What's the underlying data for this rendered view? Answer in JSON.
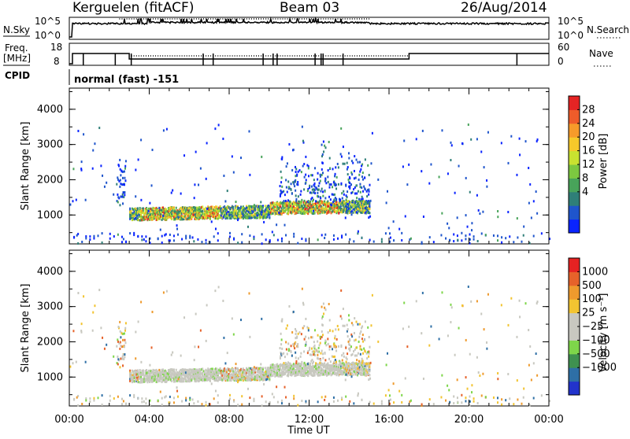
{
  "header": {
    "station": "Kerguelen (fitACF)",
    "beam": "Beam 03",
    "date": "26/Aug/2014"
  },
  "strip": {
    "nsky_label": "N.Sky",
    "nsky_ticks": [
      "10^5",
      "10^0"
    ],
    "nsearch_label": "N.Search",
    "nsearch_ticks": [
      "10^5",
      "10^0"
    ],
    "freq_label_1": "Freq.",
    "freq_label_2": "[MHz]",
    "freq_ticks": [
      "18",
      "8"
    ],
    "nave_label": "Nave",
    "nave_ticks": [
      "60",
      "0"
    ],
    "cpid_label": "CPID",
    "cpid_value": "normal (fast) -151"
  },
  "chart_data": [
    {
      "type": "heatmap",
      "name": "power",
      "ylabel": "Slant Range [km]",
      "yticks": [
        "4000",
        "3000",
        "2000",
        "1000"
      ],
      "ylim": [
        180,
        4600
      ],
      "xlim": [
        0,
        24
      ],
      "colorbar_label": "Power [dB]",
      "colorbar_ticks": [
        "28",
        "24",
        "20",
        "16",
        "12",
        "8",
        "4"
      ],
      "colors": [
        "#0a24ff",
        "#1f55cc",
        "#2f7f78",
        "#48a35a",
        "#7cc840",
        "#c9e230",
        "#f6c92a",
        "#f79b2a",
        "#ee5c2a",
        "#e52424"
      ]
    },
    {
      "type": "heatmap",
      "name": "velocity",
      "ylabel": "Slant Range [km]",
      "yticks": [
        "4000",
        "3000",
        "2000",
        "1000"
      ],
      "ylim": [
        180,
        4600
      ],
      "xlim": [
        0,
        24
      ],
      "xlabel": "Time UT",
      "xticks": [
        "00:00",
        "04:00",
        "08:00",
        "12:00",
        "16:00",
        "20:00",
        "00:00"
      ],
      "colorbar_label": "Velocity [m s⁻¹]",
      "colorbar_ticks": [
        "1000",
        "500",
        "100",
        "25",
        "−25",
        "−100",
        "−500",
        "−1000"
      ],
      "colors": [
        "#2233cc",
        "#2e6fa6",
        "#3f9150",
        "#7ed64a",
        "#c8c8c0",
        "#c8c8c0",
        "#f2c431",
        "#ee9a2d",
        "#e6622a",
        "#e52222"
      ]
    }
  ]
}
